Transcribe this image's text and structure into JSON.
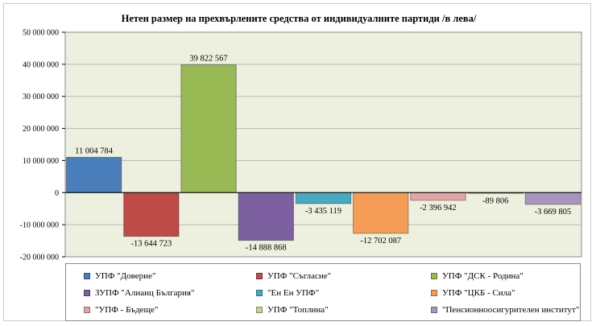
{
  "chart_data": {
    "type": "bar",
    "title": "Нетен размер на прехвърлените средства от индивидуалните партиди /в лева/",
    "xlabel": "",
    "ylabel": "",
    "ylim": [
      -20000000,
      50000000
    ],
    "yticks": [
      50000000,
      40000000,
      30000000,
      20000000,
      10000000,
      0,
      -10000000,
      -20000000
    ],
    "ytick_labels": [
      "50 000 000",
      "40 000 000",
      "30 000 000",
      "20 000 000",
      "10 000 000",
      "0",
      "-10 000 000",
      "-20 000 000"
    ],
    "grid": true,
    "legend_position": "bottom",
    "categories": [
      "УПФ \"Доверие\"",
      "УПФ \"Съгласие\"",
      "УПФ \"ДСК - Родина\"",
      "ЗУПФ \"Алианц България\"",
      "\"Ен Ен УПФ\"",
      "УПФ \"ЦКБ - Сила\"",
      "\"УПФ - Бъдеще\"",
      "УПФ \"Топлина\"",
      "\"Пенсионноосигурителен институт\""
    ],
    "values": [
      11004784,
      -13644723,
      39822567,
      -14888868,
      -3435119,
      -12702087,
      -2396942,
      -89806,
      -3669805
    ],
    "data_labels": [
      "11 004 784",
      "-13 644 723",
      "39 822 567",
      "-14 888 868",
      "-3 435 119",
      "-12 702 087",
      "-2 396 942",
      "-89 806",
      "-3 669 805"
    ],
    "colors": [
      "#4a7ebb",
      "#be4b48",
      "#98b954",
      "#7d60a0",
      "#46aac4",
      "#f59d56",
      "#e3a6a5",
      "#c0d599",
      "#a895c0"
    ],
    "plot_background": "#eef0df"
  }
}
